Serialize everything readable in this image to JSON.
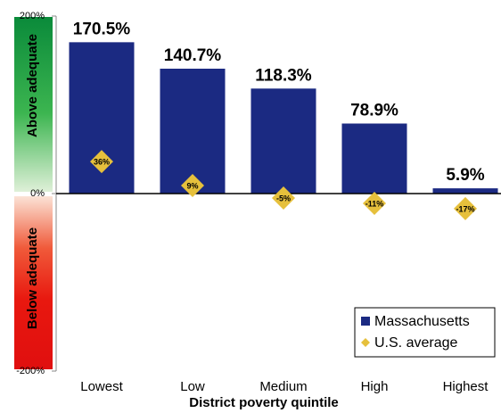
{
  "chart_data": {
    "type": "bar",
    "categories": [
      "Lowest",
      "Low",
      "Medium",
      "High",
      "Highest"
    ],
    "series": [
      {
        "name": "Massachusetts",
        "type": "bar",
        "color": "#1b2a82",
        "values": [
          170.5,
          140.7,
          118.3,
          78.9,
          5.9
        ],
        "value_labels": [
          "170.5%",
          "140.7%",
          "118.3%",
          "78.9%",
          "5.9%"
        ]
      },
      {
        "name": "U.S. average",
        "type": "diamond",
        "color": "#e6c03c",
        "values": [
          36,
          9,
          -5,
          -11,
          -17
        ],
        "value_labels": [
          "36%",
          "9%",
          "-5%",
          "-11%",
          "-17%"
        ]
      }
    ],
    "ylim": [
      -200,
      200
    ],
    "yticks": [
      {
        "value": 200,
        "label": "200%"
      },
      {
        "value": 0,
        "label": "0%"
      },
      {
        "value": -200,
        "label": "-200%"
      }
    ],
    "xlabel": "District poverty quintile",
    "annotations": [
      "Above adequate",
      "Below adequate"
    ],
    "legend": "bottom-right",
    "grid": false
  }
}
